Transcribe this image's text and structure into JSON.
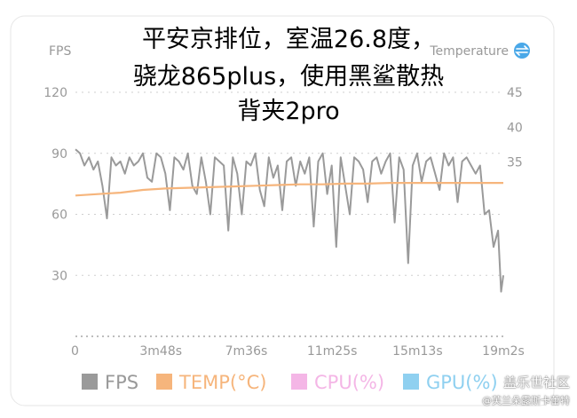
{
  "overlay": {
    "line1": "平安京排位，室温26.8度，",
    "line2": "骁龙865plus，使用黑鲨散热",
    "line3": "背夹2pro"
  },
  "watermark": {
    "line1": "盖乐世社区",
    "line2": "@芙兰朵露斯卡蕾特"
  },
  "colors": {
    "fps": "#9a9a9a",
    "temp": "#f6b57c",
    "cpu": "#f4b6e6",
    "gpu": "#8fd0f0",
    "toggle": "#4aa8e8",
    "axis_text": "#999999"
  },
  "chart_data": {
    "type": "line",
    "left_axis_label": "FPS",
    "right_axis_label": "Temperature",
    "right_axis_icon": "swap-icon",
    "y_left_ticks": [
      "120",
      "90",
      "60",
      "30"
    ],
    "y_right_ticks": [
      "45",
      "40",
      "35"
    ],
    "ylim_left": [
      0,
      120
    ],
    "ylim_right": [
      10,
      45
    ],
    "x_tick_labels": [
      "0",
      "3m48s",
      "7m36s",
      "11m25s",
      "15m13s",
      "19m2s"
    ],
    "x_tick_seconds": [
      0,
      228,
      456,
      685,
      913,
      1142
    ],
    "xlim_seconds": [
      0,
      1142
    ],
    "legend": [
      {
        "label": "FPS",
        "color": "#9a9a9a"
      },
      {
        "label": "TEMP(°C)",
        "color": "#f6b57c"
      },
      {
        "label": "CPU(%)",
        "color": "#f4b6e6"
      },
      {
        "label": "GPU(%)",
        "color": "#8fd0f0"
      }
    ],
    "series": [
      {
        "name": "FPS",
        "axis": "left",
        "x_seconds": [
          0,
          12,
          24,
          36,
          48,
          60,
          72,
          84,
          96,
          108,
          120,
          132,
          144,
          156,
          168,
          180,
          192,
          204,
          216,
          228,
          240,
          252,
          264,
          276,
          288,
          300,
          312,
          324,
          336,
          348,
          360,
          372,
          384,
          396,
          408,
          420,
          432,
          444,
          456,
          468,
          480,
          492,
          504,
          516,
          528,
          540,
          552,
          564,
          576,
          588,
          600,
          612,
          624,
          636,
          648,
          660,
          672,
          684,
          696,
          708,
          720,
          732,
          744,
          756,
          768,
          780,
          792,
          804,
          816,
          828,
          840,
          852,
          864,
          876,
          888,
          900,
          912,
          924,
          936,
          948,
          960,
          972,
          984,
          996,
          1008,
          1020,
          1032,
          1044,
          1056,
          1068,
          1080,
          1092,
          1104,
          1116,
          1128,
          1136,
          1142
        ],
        "values": [
          92,
          90,
          84,
          88,
          82,
          86,
          74,
          58,
          88,
          84,
          86,
          80,
          88,
          84,
          86,
          90,
          78,
          76,
          90,
          88,
          80,
          62,
          88,
          86,
          82,
          90,
          74,
          70,
          88,
          76,
          60,
          88,
          86,
          84,
          52,
          88,
          80,
          60,
          86,
          84,
          90,
          72,
          64,
          88,
          78,
          84,
          62,
          86,
          88,
          74,
          86,
          80,
          88,
          54,
          86,
          90,
          70,
          84,
          44,
          88,
          74,
          60,
          88,
          86,
          82,
          66,
          86,
          88,
          80,
          86,
          90,
          56,
          88,
          82,
          36,
          84,
          90,
          76,
          86,
          88,
          80,
          72,
          90,
          84,
          88,
          66,
          86,
          88,
          84,
          80,
          84,
          60,
          62,
          44,
          52,
          22,
          30
        ]
      },
      {
        "name": "TEMP(°C)",
        "axis": "right",
        "x_seconds": [
          0,
          60,
          120,
          180,
          240,
          300,
          360,
          420,
          480,
          540,
          600,
          660,
          720,
          780,
          840,
          900,
          960,
          1020,
          1080,
          1142
        ],
        "values": [
          30.2,
          30.4,
          30.6,
          31.0,
          31.2,
          31.3,
          31.4,
          31.5,
          31.6,
          31.7,
          31.8,
          31.8,
          31.9,
          31.9,
          32.0,
          32.0,
          32.0,
          32.0,
          32.0,
          32.0
        ]
      }
    ],
    "grid": "dotted"
  }
}
